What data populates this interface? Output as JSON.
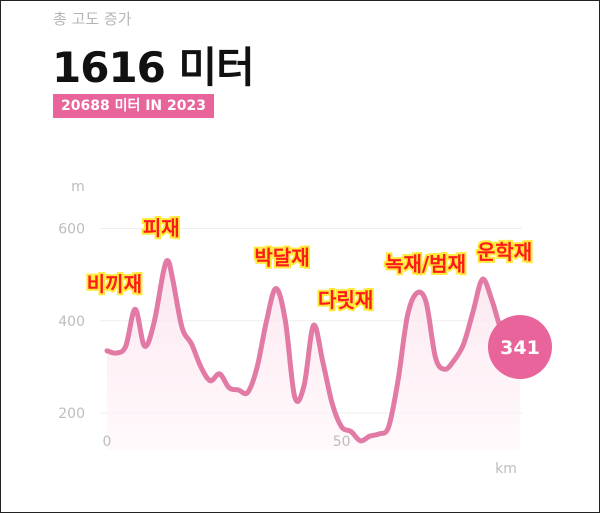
{
  "header": {
    "subtitle": "총 고도 증가",
    "total": "1616 미터",
    "badge": "20688 미터 IN 2023"
  },
  "colors": {
    "accent": "#e8649a",
    "line": "#e27aa6",
    "fill": "#fbe9f1",
    "grid": "#eeeeee",
    "label": "#ff1a1a",
    "label_outline": "#ffe93a",
    "axis_text": "#bdbdbd"
  },
  "chart_data": {
    "type": "area",
    "xlabel": "km",
    "ylabel": "m",
    "xlim": [
      0,
      88
    ],
    "ylim": [
      120,
      640
    ],
    "x_ticks": [
      0,
      50
    ],
    "y_ticks": [
      200,
      400,
      600
    ],
    "grid": true,
    "series": [
      {
        "values_x": [
          0,
          2,
          4,
          6,
          8,
          10,
          12,
          13,
          14,
          16,
          18,
          20,
          22,
          24,
          26,
          28,
          30,
          32,
          34,
          36,
          38,
          40,
          42,
          44,
          46,
          48,
          50,
          52,
          54,
          56,
          58,
          60,
          62,
          64,
          66,
          68,
          70,
          72,
          74,
          76,
          78,
          80,
          82,
          84,
          86,
          88
        ],
        "values_y": [
          335,
          330,
          345,
          425,
          345,
          395,
          505,
          530,
          490,
          385,
          350,
          300,
          270,
          285,
          255,
          250,
          245,
          300,
          400,
          470,
          400,
          235,
          260,
          390,
          310,
          220,
          170,
          160,
          140,
          150,
          155,
          170,
          270,
          410,
          460,
          440,
          320,
          295,
          315,
          350,
          420,
          490,
          445,
          380,
          350,
          341
        ]
      }
    ],
    "current_value": "341",
    "annotations": [
      {
        "text": "비끼재",
        "x": 2,
        "y": 425
      },
      {
        "text": "피재",
        "x": 12,
        "y": 530
      },
      {
        "text": "박달재",
        "x": 39,
        "y": 470
      },
      {
        "text": "다릿재",
        "x": 50,
        "y": 400
      },
      {
        "text": "녹재/범재",
        "x": 70,
        "y": 460
      },
      {
        "text": "운학재",
        "x": 86,
        "y": 490
      }
    ]
  }
}
